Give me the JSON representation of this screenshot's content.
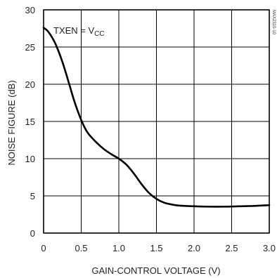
{
  "chart_data": {
    "type": "line",
    "xlabel": "GAIN-CONTROL VOLTAGE (V)",
    "ylabel": "NOISE FIGURE (dB)",
    "xlim": [
      0,
      3.0
    ],
    "ylim": [
      0,
      30
    ],
    "x_ticks": [
      "0",
      "0.5",
      "1.0",
      "1.5",
      "2.0",
      "2.5",
      "3.0"
    ],
    "y_ticks": [
      "0",
      "5",
      "10",
      "15",
      "20",
      "25",
      "30"
    ],
    "grid": true,
    "annotation": {
      "main": "TXEN = V",
      "subscript": "CC"
    },
    "side_code": "MAX2310-10",
    "series": [
      {
        "x": [
          0,
          0.05,
          0.1,
          0.15,
          0.2,
          0.25,
          0.3,
          0.35,
          0.4,
          0.45,
          0.5,
          0.55,
          0.6,
          0.7,
          0.8,
          0.9,
          1.0,
          1.1,
          1.2,
          1.3,
          1.4,
          1.5,
          1.6,
          1.7,
          1.8,
          2.0,
          2.2,
          2.4,
          2.6,
          2.8,
          3.0
        ],
        "y": [
          27.6,
          27.2,
          26.5,
          25.6,
          24.4,
          23.0,
          21.4,
          19.7,
          18.0,
          16.5,
          15.2,
          14.1,
          13.3,
          12.2,
          11.3,
          10.6,
          10.0,
          9.2,
          8.0,
          6.6,
          5.4,
          4.6,
          4.1,
          3.85,
          3.7,
          3.6,
          3.55,
          3.55,
          3.6,
          3.65,
          3.75
        ]
      }
    ]
  }
}
